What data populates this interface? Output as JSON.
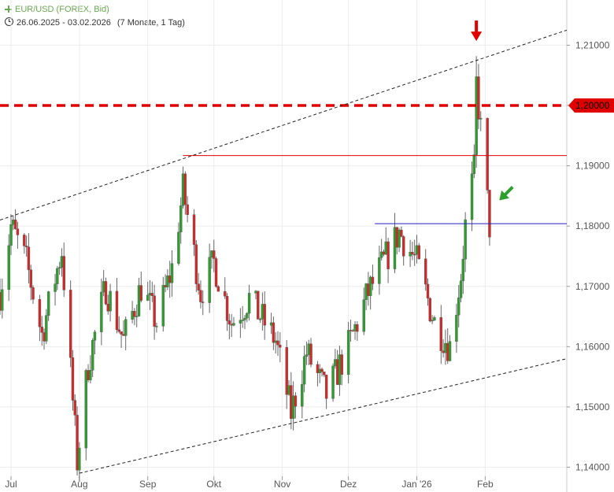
{
  "header": {
    "title": "EUR/USD (FOREX, Bid)",
    "date_range": "26.06.2025 - 03.02.2026",
    "range_info": "(7 Monate, 1 Tag)"
  },
  "colors": {
    "up": "#2ca02c",
    "down": "#d62728",
    "resistance": "#e00000",
    "support_blue": "#1f1fbf",
    "axis_text": "#555555"
  },
  "chart_data": {
    "type": "candlestick",
    "title": "EUR/USD (FOREX, Bid)",
    "ylim": [
      1.1385,
      1.2175
    ],
    "yticks": [
      1.14,
      1.15,
      1.16,
      1.17,
      1.18,
      1.19,
      1.2,
      1.21
    ],
    "ytick_labels": [
      "1,14000",
      "1,15000",
      "1,16000",
      "1,17000",
      "1,18000",
      "1,19000",
      "1,20000",
      "1,21000"
    ],
    "x_months": [
      {
        "label": "Jul",
        "date": "2025-07-01"
      },
      {
        "label": "Aug",
        "date": "2025-08-01"
      },
      {
        "label": "Sep",
        "date": "2025-09-01"
      },
      {
        "label": "Okt",
        "date": "2025-10-01"
      },
      {
        "label": "Nov",
        "date": "2025-11-01"
      },
      {
        "label": "Dez",
        "date": "2025-12-01"
      },
      {
        "label": "Jan '26",
        "date": "2026-01-01"
      },
      {
        "label": "Feb",
        "date": "2026-02-01"
      }
    ],
    "x_range": [
      "2025-06-26",
      "2026-03-10"
    ],
    "key_points": [
      {
        "date": "2025-06-26",
        "close": 1.169
      },
      {
        "date": "2025-07-01",
        "close": 1.18
      },
      {
        "date": "2025-07-08",
        "close": 1.174
      },
      {
        "date": "2025-07-15",
        "close": 1.162
      },
      {
        "date": "2025-07-24",
        "close": 1.176
      },
      {
        "date": "2025-07-31",
        "close": 1.141
      },
      {
        "date": "2025-08-05",
        "close": 1.157
      },
      {
        "date": "2025-08-13",
        "close": 1.17
      },
      {
        "date": "2025-08-21",
        "close": 1.161
      },
      {
        "date": "2025-08-29",
        "close": 1.17
      },
      {
        "date": "2025-09-05",
        "close": 1.164
      },
      {
        "date": "2025-09-12",
        "close": 1.173
      },
      {
        "date": "2025-09-17",
        "close": 1.186
      },
      {
        "date": "2025-09-25",
        "close": 1.169
      },
      {
        "date": "2025-10-01",
        "close": 1.174
      },
      {
        "date": "2025-10-09",
        "close": 1.164
      },
      {
        "date": "2025-10-17",
        "close": 1.168
      },
      {
        "date": "2025-10-29",
        "close": 1.161
      },
      {
        "date": "2025-11-05",
        "close": 1.149
      },
      {
        "date": "2025-11-12",
        "close": 1.159
      },
      {
        "date": "2025-11-21",
        "close": 1.152
      },
      {
        "date": "2025-12-01",
        "close": 1.16
      },
      {
        "date": "2025-12-10",
        "close": 1.169
      },
      {
        "date": "2025-12-17",
        "close": 1.174
      },
      {
        "date": "2025-12-24",
        "close": 1.179
      },
      {
        "date": "2026-01-01",
        "close": 1.174
      },
      {
        "date": "2026-01-09",
        "close": 1.164
      },
      {
        "date": "2026-01-16",
        "close": 1.16
      },
      {
        "date": "2026-01-21",
        "close": 1.172
      },
      {
        "date": "2026-01-23",
        "close": 1.18
      },
      {
        "date": "2026-01-27",
        "close": 1.189
      },
      {
        "date": "2026-01-28",
        "close": 1.2035
      },
      {
        "date": "2026-01-30",
        "close": 1.196
      },
      {
        "date": "2026-02-02",
        "close": 1.184
      },
      {
        "date": "2026-02-03",
        "close": 1.18
      }
    ],
    "peak": {
      "date": "2026-01-28",
      "high": 1.2082
    },
    "lines": [
      {
        "kind": "horizontal",
        "style": "dashed",
        "value": 1.2,
        "label": "1,20000"
      },
      {
        "kind": "horizontal",
        "style": "solid",
        "value": 1.1917,
        "from": "2025-09-17",
        "to": "2026-03-10"
      },
      {
        "kind": "horizontal",
        "style": "solid",
        "value": 1.1804,
        "from": "2025-12-13",
        "to": "2026-03-10"
      },
      {
        "kind": "trend",
        "style": "dotted",
        "from": {
          "date": "2025-06-26",
          "value": 1.181
        },
        "to": {
          "date": "2026-03-10",
          "value": 1.2125
        }
      },
      {
        "kind": "trend",
        "style": "dotted",
        "from": {
          "date": "2025-08-01",
          "value": 1.139
        },
        "to": {
          "date": "2026-03-10",
          "value": 1.158
        }
      }
    ],
    "annotations": [
      {
        "kind": "arrow-down",
        "color": "#e00000",
        "date": "2026-01-28",
        "value": 1.2107
      },
      {
        "kind": "arrow-down-left",
        "color": "#2ca02c",
        "date": "2026-02-03",
        "value": 1.185
      }
    ],
    "grid": true
  }
}
